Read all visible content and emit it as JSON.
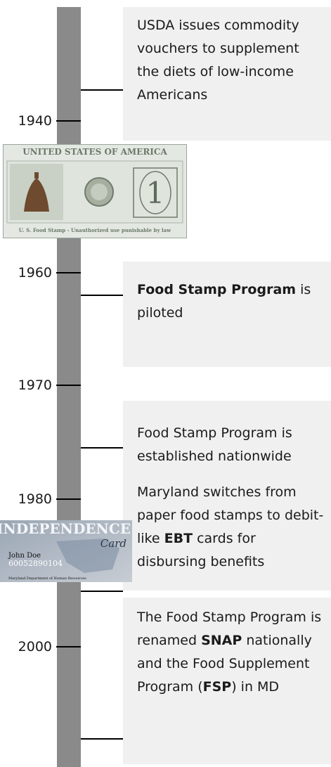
{
  "years": [
    "1940",
    "1960",
    "1970",
    "1980",
    "2000"
  ],
  "events": [
    {
      "parts": [
        {
          "text": "USDA issues commodity vouchers to supplement the diets of low-income Americans"
        }
      ]
    },
    {
      "parts": [
        {
          "text": "Food Stamp Program",
          "bold": true
        },
        {
          "text": " is piloted"
        }
      ]
    },
    {
      "parts": [
        {
          "text": "Food Stamp Program is established nationwide"
        }
      ]
    },
    {
      "parts": [
        {
          "text": "Maryland switches from paper food stamps to debit- like "
        },
        {
          "text": "EBT",
          "bold": true
        },
        {
          "text": " cards for disbursing benefits"
        }
      ]
    },
    {
      "parts": [
        {
          "text": "The Food Stamp Program is renamed "
        },
        {
          "text": "SNAP",
          "bold": true
        },
        {
          "text": " nationally and the Food Supplement Program ("
        },
        {
          "text": "FSP",
          "bold": true
        },
        {
          "text": ") in MD"
        }
      ]
    }
  ],
  "food_stamp": {
    "header": "UNITED STATES OF AMERICA",
    "denomination": "1",
    "footer": "U. S. Food Stamp - Unauthorized use punishable by law"
  },
  "ebt_card": {
    "brand": "INDEPENDENCE",
    "subtitle": "Card",
    "holder": "John Doe",
    "number": "60052890104",
    "issuer": "Maryland Department of Human Resources"
  }
}
